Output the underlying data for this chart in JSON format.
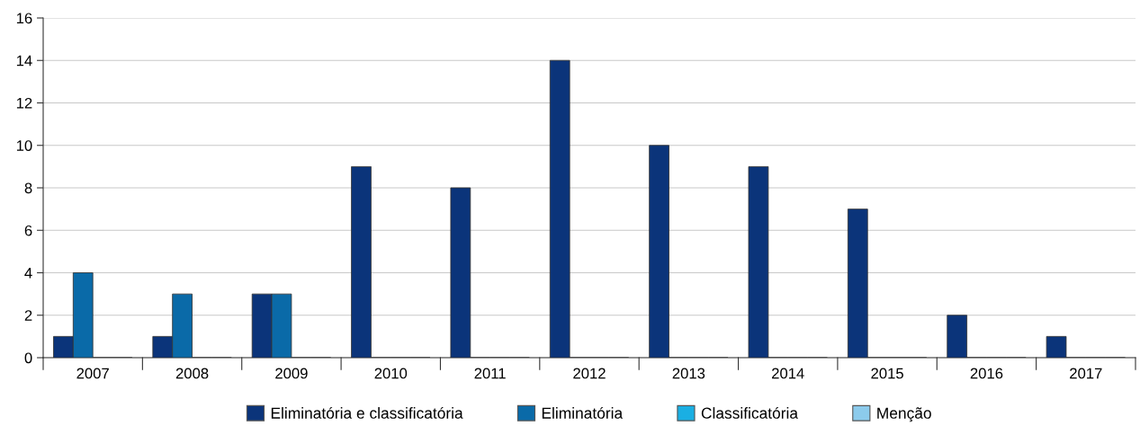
{
  "chart_data": {
    "type": "bar",
    "categories": [
      "2007",
      "2008",
      "2009",
      "2010",
      "2011",
      "2012",
      "2013",
      "2014",
      "2015",
      "2016",
      "2017"
    ],
    "series": [
      {
        "name": "Eliminatória e classificatória",
        "color": "#0b347a",
        "values": [
          1,
          1,
          3,
          9,
          8,
          14,
          10,
          9,
          7,
          2,
          1
        ]
      },
      {
        "name": "Eliminatória",
        "color": "#0a6aa8",
        "values": [
          4,
          3,
          3,
          0,
          0,
          0,
          0,
          0,
          0,
          0,
          0
        ]
      },
      {
        "name": "Classificatória",
        "color": "#1aafe3",
        "values": [
          0,
          0,
          0,
          0,
          0,
          0,
          0,
          0,
          0,
          0,
          0
        ]
      },
      {
        "name": "Menção",
        "color": "#8ccbec",
        "values": [
          0,
          0,
          0,
          0,
          0,
          0,
          0,
          0,
          0,
          0,
          0
        ]
      }
    ],
    "ylim": [
      0,
      16
    ],
    "yticks": [
      0,
      2,
      4,
      6,
      8,
      10,
      12,
      14,
      16
    ],
    "grid": "y",
    "legend": "bottom"
  }
}
